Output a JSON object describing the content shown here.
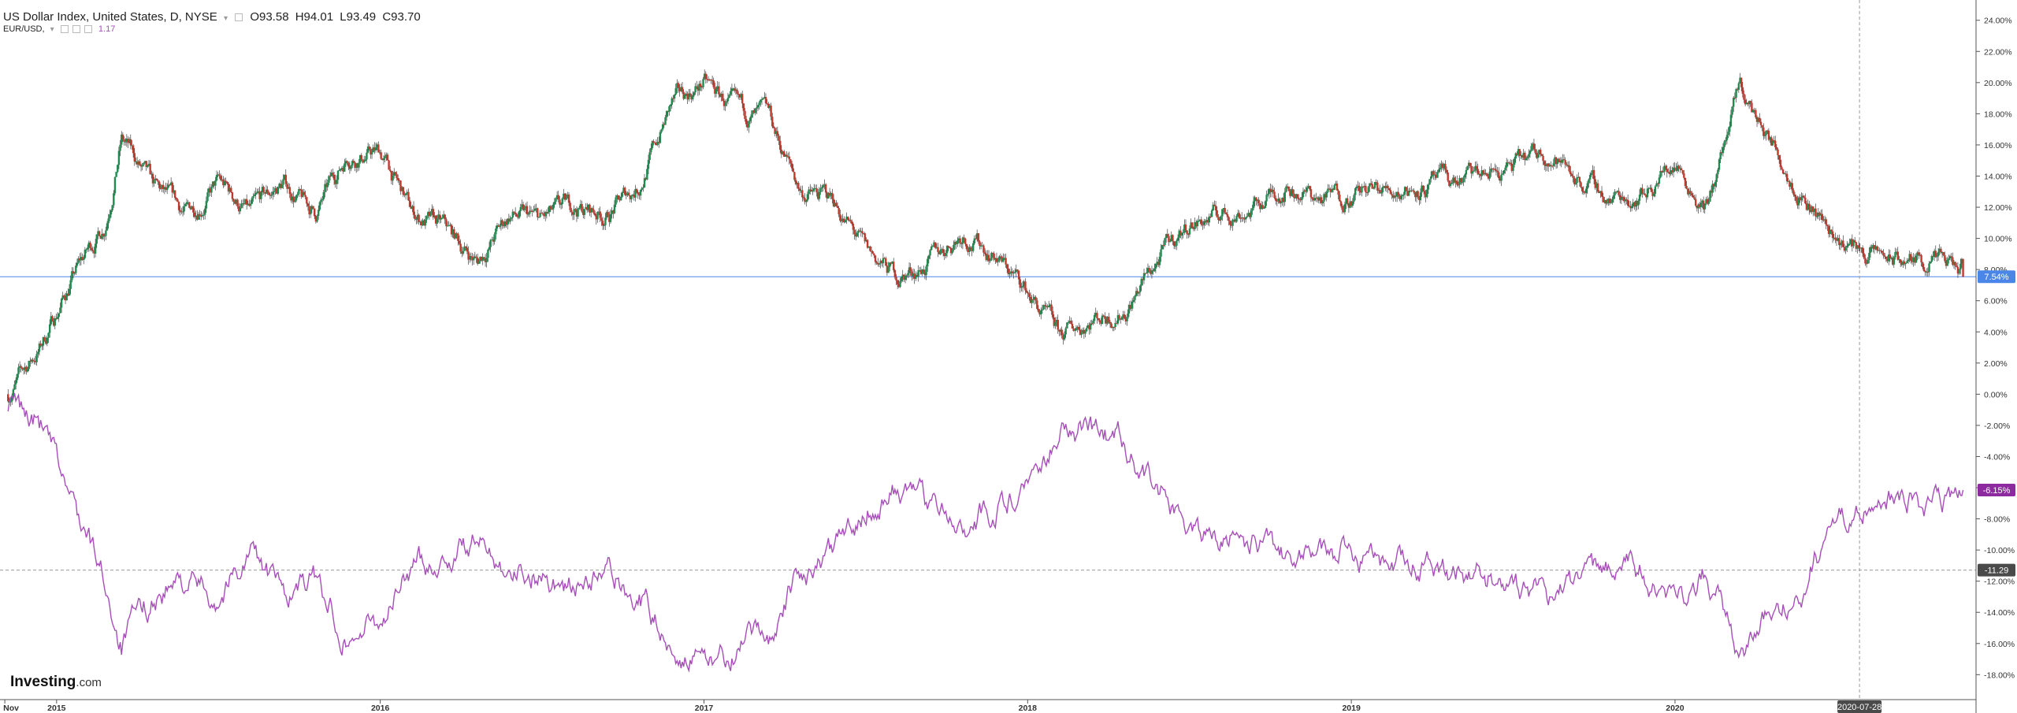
{
  "legend": {
    "title": "US Dollar Index, United States, D, NYSE",
    "open": "O93.58",
    "high": "H94.01",
    "low": "L93.49",
    "close": "C93.70",
    "compare_symbol": "EUR/USD,",
    "compare_value": "1.17"
  },
  "branding": {
    "logo": "Investing",
    "domain": ".com"
  },
  "colors": {
    "up": "#26a69a",
    "down": "#ef5350",
    "candle_green": "#1e8c4e",
    "candle_red": "#c0392b",
    "compare": "#a64fb8",
    "price_line": "#4a86e8",
    "crosshair": "#9a9a9a"
  },
  "chart_data": {
    "type": "line",
    "x_labels": [
      "Nov",
      "2015",
      "2016",
      "2017",
      "2018",
      "2019",
      "2020"
    ],
    "crosshair_date": "2020-07-28",
    "y_axis": {
      "unit": "%",
      "range": [
        -19.5,
        25.2
      ],
      "ticks": [
        "24.00%",
        "22.00%",
        "20.00%",
        "18.00%",
        "16.00%",
        "14.00%",
        "12.00%",
        "10.00%",
        "8.00%",
        "6.00%",
        "4.00%",
        "2.00%",
        "0.00%",
        "-2.00%",
        "-4.00%",
        "-6.00%",
        "-8.00%",
        "-10.00%",
        "-12.00%",
        "-14.00%",
        "-16.00%",
        "-18.00%"
      ]
    },
    "series": [
      {
        "name": "US Dollar Index",
        "style": "candles",
        "last_label": "7.54%",
        "last_value": 7.54,
        "x": [
          2014.85,
          2014.95,
          2015.05,
          2015.15,
          2015.2,
          2015.3,
          2015.4,
          2015.5,
          2015.6,
          2015.7,
          2015.8,
          2015.9,
          2016.0,
          2016.1,
          2016.2,
          2016.3,
          2016.4,
          2016.5,
          2016.6,
          2016.7,
          2016.8,
          2016.9,
          2017.0,
          2017.1,
          2017.2,
          2017.3,
          2017.4,
          2017.5,
          2017.6,
          2017.7,
          2017.8,
          2017.9,
          2018.0,
          2018.1,
          2018.2,
          2018.3,
          2018.4,
          2018.5,
          2018.6,
          2018.7,
          2018.8,
          2018.9,
          2019.0,
          2019.1,
          2019.2,
          2019.3,
          2019.4,
          2019.5,
          2019.6,
          2019.7,
          2019.8,
          2019.9,
          2020.0,
          2020.1,
          2020.2,
          2020.3,
          2020.4,
          2020.5,
          2020.6,
          2020.7,
          2020.8,
          2020.9
        ],
        "y": [
          0.0,
          3.0,
          7.5,
          11.0,
          16.5,
          13.0,
          11.5,
          13.5,
          11.5,
          13.5,
          11.5,
          15.5,
          15.5,
          11.5,
          10.5,
          8.5,
          11.5,
          11.0,
          12.0,
          11.5,
          13.5,
          18.5,
          20.0,
          18.0,
          17.5,
          13.0,
          12.5,
          9.0,
          7.5,
          8.5,
          10.5,
          9.0,
          6.5,
          3.5,
          5.0,
          5.5,
          8.5,
          11.0,
          11.5,
          12.0,
          13.5,
          12.5,
          13.0,
          13.0,
          13.5,
          13.5,
          14.0,
          14.5,
          15.5,
          14.0,
          12.5,
          13.0,
          15.0,
          12.0,
          19.5,
          16.0,
          13.0,
          10.0,
          9.0,
          8.5,
          8.5,
          7.54
        ]
      },
      {
        "name": "EUR/USD",
        "style": "line",
        "last_label": "-6.15%",
        "last_value": -6.15,
        "x": [
          2014.85,
          2014.95,
          2015.05,
          2015.15,
          2015.2,
          2015.3,
          2015.4,
          2015.5,
          2015.6,
          2015.7,
          2015.8,
          2015.9,
          2016.0,
          2016.1,
          2016.2,
          2016.3,
          2016.4,
          2016.5,
          2016.6,
          2016.7,
          2016.8,
          2016.9,
          2017.0,
          2017.1,
          2017.2,
          2017.3,
          2017.4,
          2017.5,
          2017.6,
          2017.7,
          2017.8,
          2017.9,
          2018.0,
          2018.1,
          2018.2,
          2018.3,
          2018.4,
          2018.5,
          2018.6,
          2018.7,
          2018.8,
          2018.9,
          2019.0,
          2019.1,
          2019.2,
          2019.3,
          2019.4,
          2019.5,
          2019.6,
          2019.7,
          2019.8,
          2019.9,
          2020.0,
          2020.1,
          2020.2,
          2020.3,
          2020.4,
          2020.5,
          2020.6,
          2020.7,
          2020.8,
          2020.9
        ],
        "y": [
          -0.5,
          -2.0,
          -7.0,
          -12.0,
          -16.0,
          -13.0,
          -12.0,
          -13.0,
          -10.0,
          -13.0,
          -12.0,
          -15.5,
          -14.5,
          -11.0,
          -10.5,
          -9.5,
          -11.0,
          -11.5,
          -12.5,
          -11.5,
          -13.0,
          -16.0,
          -17.5,
          -16.5,
          -15.5,
          -11.5,
          -10.5,
          -7.0,
          -6.0,
          -7.0,
          -8.0,
          -7.5,
          -5.5,
          -2.0,
          -2.5,
          -3.0,
          -6.0,
          -8.5,
          -9.0,
          -9.5,
          -10.5,
          -10.0,
          -10.0,
          -10.5,
          -11.0,
          -11.5,
          -11.5,
          -12.5,
          -13.0,
          -12.5,
          -11.0,
          -11.5,
          -13.0,
          -11.5,
          -16.5,
          -14.0,
          -12.0,
          -8.0,
          -6.5,
          -6.5,
          -7.0,
          -6.15
        ]
      }
    ],
    "crosshair_value_label": "-11.29",
    "crosshair_value": -11.29
  }
}
